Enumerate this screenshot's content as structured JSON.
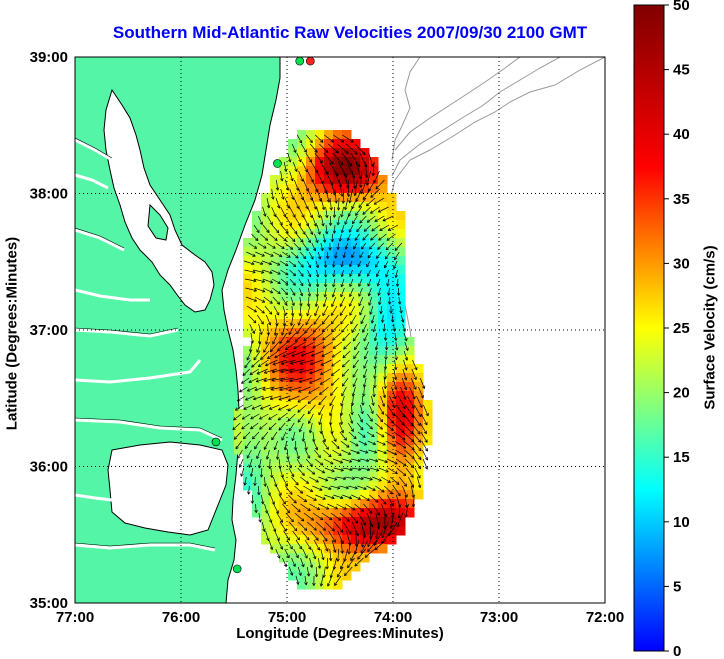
{
  "title": "Southern Mid-Atlantic Raw Velocities 2007/09/30 2100 GMT",
  "map": {
    "xlabel": "Longitude (Degrees:Minutes)",
    "ylabel": "Latitude (Degrees:Minutes)",
    "lon_ticks": [
      {
        "value": -77,
        "label": "77:00"
      },
      {
        "value": -76,
        "label": "76:00"
      },
      {
        "value": -75,
        "label": "75:00"
      },
      {
        "value": -74,
        "label": "74:00"
      },
      {
        "value": -73,
        "label": "73:00"
      },
      {
        "value": -72,
        "label": "72:00"
      }
    ],
    "lat_ticks": [
      {
        "value": 35,
        "label": "35:00"
      },
      {
        "value": 36,
        "label": "36:00"
      },
      {
        "value": 37,
        "label": "37:00"
      },
      {
        "value": 38,
        "label": "38:00"
      },
      {
        "value": 39,
        "label": "39:00"
      }
    ],
    "lon_range": [
      -77,
      -72
    ],
    "lat_range": [
      35,
      39
    ],
    "grid": "dotted",
    "colors": {
      "land": "#55f5a8",
      "coast": "#000000",
      "bathymetry": "#9a9a9a",
      "station": "#00e050",
      "station_active": "#ff2020"
    },
    "stations": [
      {
        "lon": -74.88,
        "lat": 38.97,
        "active": false
      },
      {
        "lon": -74.78,
        "lat": 38.97,
        "active": true
      },
      {
        "lon": -75.09,
        "lat": 38.22,
        "active": false
      },
      {
        "lon": -75.67,
        "lat": 36.18,
        "active": false
      },
      {
        "lon": -75.47,
        "lat": 35.25,
        "active": false
      }
    ]
  },
  "colorbar": {
    "label": "Surface Velocity (cm/s)",
    "min": 0,
    "max": 50,
    "ticks": [
      {
        "value": 0,
        "label": "0"
      },
      {
        "value": 5,
        "label": "5"
      },
      {
        "value": 10,
        "label": "10"
      },
      {
        "value": 15,
        "label": "15"
      },
      {
        "value": 20,
        "label": "20"
      },
      {
        "value": 25,
        "label": "25"
      },
      {
        "value": 30,
        "label": "30"
      },
      {
        "value": 35,
        "label": "35"
      },
      {
        "value": 40,
        "label": "40"
      },
      {
        "value": 45,
        "label": "45"
      },
      {
        "value": 50,
        "label": "50"
      }
    ],
    "colormap": "jet"
  }
}
